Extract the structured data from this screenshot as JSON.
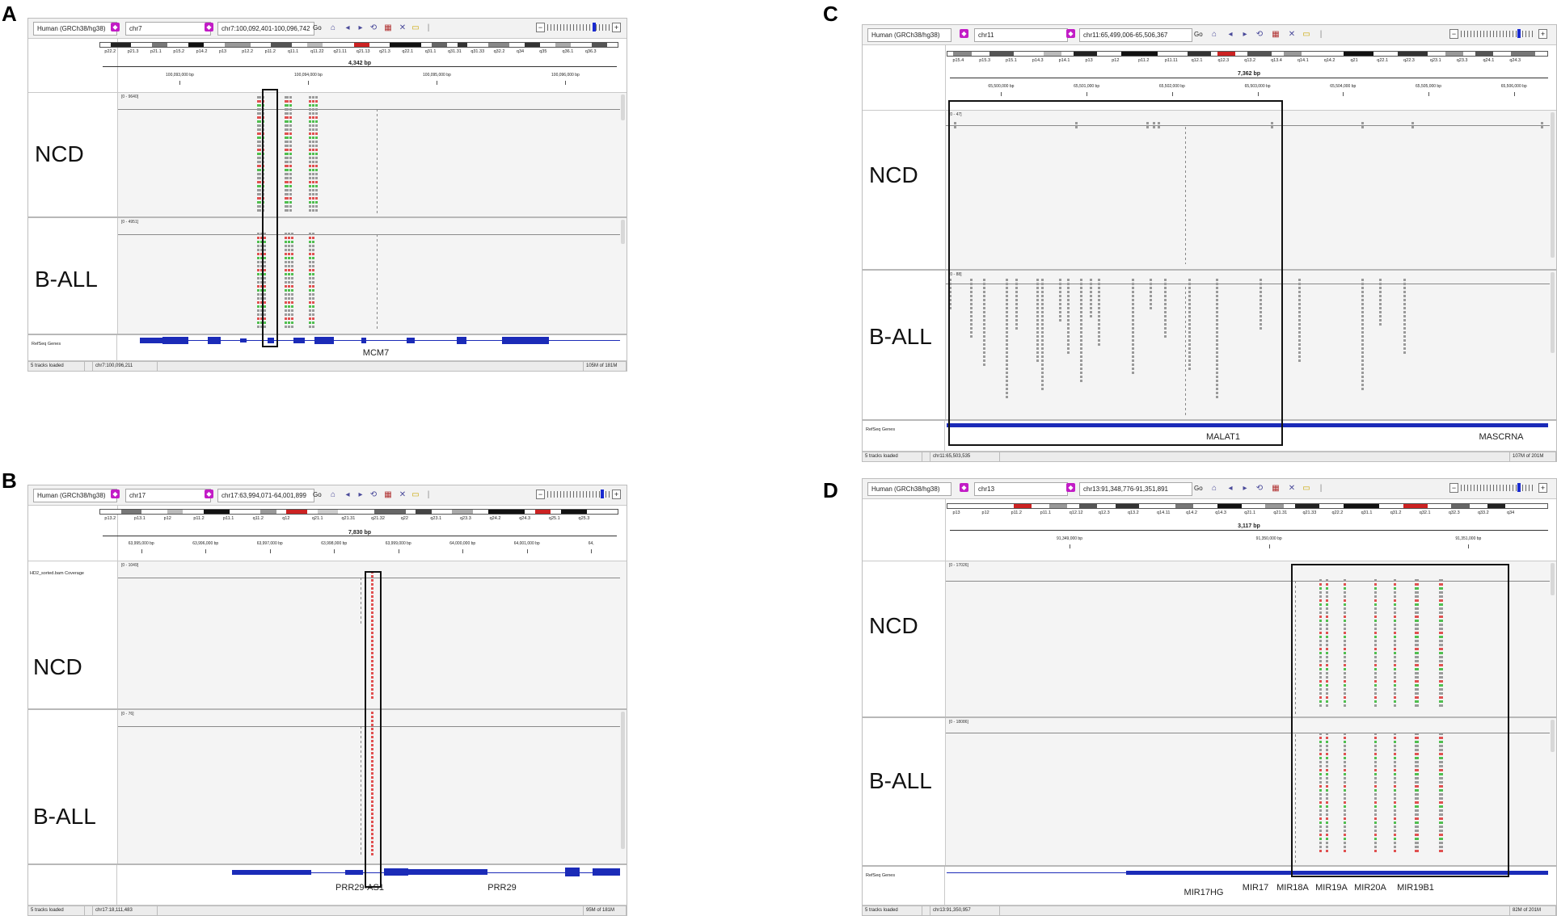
{
  "panels": {
    "A": {
      "letter": "A",
      "genome": "Human (GRCh38/hg38)",
      "chromosome": "chr7",
      "locus": "chr7:100,092,401-100,096,742",
      "go_label": "Go",
      "cytobands": [
        "p22.2",
        "p21.3",
        "p21.1",
        "p15.2",
        "p14.2",
        "p13",
        "p12.2",
        "p11.2",
        "q11.1",
        "q11.22",
        "q21.11",
        "q21.13",
        "q21.3",
        "q22.1",
        "q31.1",
        "q31.31",
        "q31.33",
        "q32.2",
        "q34",
        "q35",
        "q36.1",
        "q36.3"
      ],
      "span": "4,342 bp",
      "ticks": [
        "100,093,000 bp",
        "100,094,000 bp",
        "100,095,000 bp",
        "100,096,000 bp"
      ],
      "tracks": [
        {
          "name": "NCD",
          "range": "[0 - 9640]"
        },
        {
          "name": "B-ALL",
          "range": "[0 - 4951]"
        }
      ],
      "genes_track": "RefSeq Genes",
      "genes": [
        "MCM7"
      ],
      "status": {
        "loaded": "5 tracks loaded",
        "position": "chr7:100,096,211",
        "memory": "105M of 181M"
      }
    },
    "B": {
      "letter": "B",
      "genome": "Human (GRCh38/hg38)",
      "chromosome": "chr17",
      "locus": "chr17:63,994,071-64,001,899",
      "go_label": "Go",
      "cytobands": [
        "p13.2",
        "p13.1",
        "p12",
        "p11.2",
        "p11.1",
        "q11.2",
        "q12",
        "q21.1",
        "q21.31",
        "q21.32",
        "q22",
        "q23.1",
        "q23.3",
        "q24.2",
        "q24.3",
        "q25.1",
        "q25.3"
      ],
      "span": "7,830 bp",
      "ticks": [
        "63,995,000 bp",
        "63,996,000 bp",
        "63,997,000 bp",
        "63,998,000 bp",
        "63,999,000 bp",
        "64,000,000 bp",
        "64,001,000 bp",
        "64,"
      ],
      "track_title": "HD2_sorted.bam Coverage",
      "tracks": [
        {
          "name": "NCD",
          "range": "[0 - 1049]"
        },
        {
          "name": "B-ALL",
          "range": "[0 - 76]"
        }
      ],
      "genes_track": "",
      "genes": [
        "PRR29-AS1",
        "PRR29"
      ],
      "status": {
        "loaded": "5 tracks loaded",
        "position": "chr17:18,111,483",
        "memory": "95M of 181M"
      }
    },
    "C": {
      "letter": "C",
      "genome": "Human (GRCh38/hg38)",
      "chromosome": "chr11",
      "locus": "chr11:65,499,006-65,506,367",
      "go_label": "Go",
      "cytobands": [
        "p15.4",
        "p15.3",
        "p15.1",
        "p14.3",
        "p14.1",
        "p13",
        "p12",
        "p11.2",
        "p11.11",
        "q12.1",
        "q12.3",
        "q13.2",
        "q13.4",
        "q14.1",
        "q14.2",
        "q21",
        "q22.1",
        "q22.3",
        "q23.1",
        "q23.3",
        "q24.1",
        "q24.3"
      ],
      "span": "7,362 bp",
      "ticks": [
        "65,500,000 bp",
        "65,501,000 bp",
        "65,502,000 bp",
        "65,503,000 bp",
        "65,504,000 bp",
        "65,505,000 bp",
        "65,506,000 bp"
      ],
      "tracks": [
        {
          "name": "NCD",
          "range": "[0 - 47]"
        },
        {
          "name": "B-ALL",
          "range": "[0 - 88]"
        }
      ],
      "genes_track": "RefSeq Genes",
      "genes": [
        "MALAT1",
        "MASCRNA"
      ],
      "status": {
        "loaded": "5 tracks loaded",
        "position": "chr11:65,503,535",
        "memory": "107M of 201M"
      }
    },
    "D": {
      "letter": "D",
      "genome": "Human (GRCh38/hg38)",
      "chromosome": "chr13",
      "locus": "chr13:91,348,776-91,351,891",
      "go_label": "Go",
      "cytobands": [
        "p13",
        "p12",
        "p11.2",
        "p11.1",
        "q12.12",
        "q12.3",
        "q13.2",
        "q14.11",
        "q14.2",
        "q14.3",
        "q21.1",
        "q21.31",
        "q21.33",
        "q22.2",
        "q31.1",
        "q31.2",
        "q32.1",
        "q32.3",
        "q33.2",
        "q34"
      ],
      "span": "3,117 bp",
      "ticks": [
        "91,349,000 bp",
        "91,350,000 bp",
        "91,351,000 bp"
      ],
      "tracks": [
        {
          "name": "NCD",
          "range": "[0 - 17026]"
        },
        {
          "name": "B-ALL",
          "range": "[0 - 18086]"
        }
      ],
      "genes_track": "RefSeq Genes",
      "genes": [
        "MIR17HG",
        "MIR17",
        "MIR18A",
        "MIR19A",
        "MIR20A",
        "MIR19B1"
      ],
      "status": {
        "loaded": "5 tracks loaded",
        "position": "chr13:91,350,957",
        "memory": "82M of 201M"
      }
    }
  },
  "colors": {
    "accent_magenta": "#c21cc6",
    "gene_blue": "#1b2bb8",
    "read_gray": "#9a9a9a",
    "mismatch_red": "#e05050",
    "mismatch_green": "#4fbf4f"
  }
}
